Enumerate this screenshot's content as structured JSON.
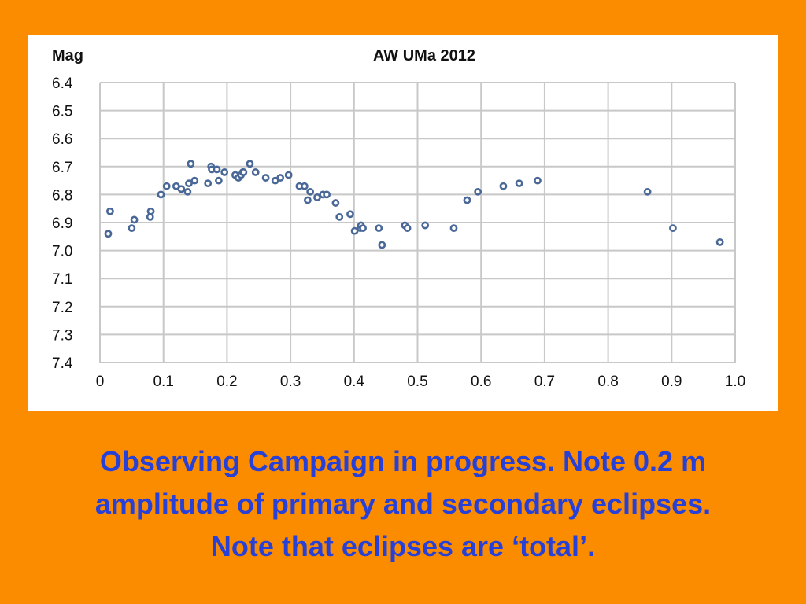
{
  "caption": {
    "line1": "Observing Campaign in progress. Note 0.2 m",
    "line2": "amplitude of primary and secondary eclipses.",
    "line3": "Note that eclipses are ‘total’."
  },
  "colors": {
    "background": "#fb8c00",
    "panel": "#ffffff",
    "marker": "#4a6897",
    "caption": "#2740d8",
    "grid": "#c8c8c8"
  },
  "chart_data": {
    "type": "scatter",
    "title": "AW UMa 2012",
    "ylabel": "Mag",
    "xlabel": "",
    "xlim": [
      0,
      1.0
    ],
    "ylim": [
      6.4,
      7.4
    ],
    "y_inverted": true,
    "grid": true,
    "x_ticks": [
      "0",
      "0.1",
      "0.2",
      "0.3",
      "0.4",
      "0.5",
      "0.6",
      "0.7",
      "0.8",
      "0.9",
      "1.0"
    ],
    "y_ticks": [
      "6.4",
      "6.5",
      "6.6",
      "6.7",
      "6.8",
      "6.9",
      "7.0",
      "7.1",
      "7.2",
      "7.3",
      "7.4"
    ],
    "x_tick_values": [
      0,
      0.1,
      0.2,
      0.3,
      0.4,
      0.5,
      0.6,
      0.7,
      0.8,
      0.9,
      1.0
    ],
    "y_tick_values": [
      6.4,
      6.5,
      6.6,
      6.7,
      6.8,
      6.9,
      7.0,
      7.1,
      7.2,
      7.3,
      7.4
    ],
    "series": [
      {
        "marker": "open-circle",
        "points": [
          [
            0.013,
            6.94
          ],
          [
            0.016,
            6.86
          ],
          [
            0.05,
            6.92
          ],
          [
            0.054,
            6.89
          ],
          [
            0.079,
            6.88
          ],
          [
            0.08,
            6.86
          ],
          [
            0.096,
            6.8
          ],
          [
            0.105,
            6.77
          ],
          [
            0.12,
            6.77
          ],
          [
            0.128,
            6.78
          ],
          [
            0.138,
            6.79
          ],
          [
            0.14,
            6.76
          ],
          [
            0.143,
            6.69
          ],
          [
            0.149,
            6.75
          ],
          [
            0.17,
            6.76
          ],
          [
            0.175,
            6.7
          ],
          [
            0.176,
            6.71
          ],
          [
            0.184,
            6.71
          ],
          [
            0.187,
            6.75
          ],
          [
            0.196,
            6.72
          ],
          [
            0.213,
            6.73
          ],
          [
            0.218,
            6.74
          ],
          [
            0.222,
            6.73
          ],
          [
            0.225,
            6.72
          ],
          [
            0.226,
            6.72
          ],
          [
            0.236,
            6.69
          ],
          [
            0.245,
            6.72
          ],
          [
            0.261,
            6.74
          ],
          [
            0.276,
            6.75
          ],
          [
            0.284,
            6.74
          ],
          [
            0.297,
            6.73
          ],
          [
            0.314,
            6.77
          ],
          [
            0.322,
            6.77
          ],
          [
            0.327,
            6.82
          ],
          [
            0.331,
            6.79
          ],
          [
            0.342,
            6.81
          ],
          [
            0.351,
            6.8
          ],
          [
            0.357,
            6.8
          ],
          [
            0.371,
            6.83
          ],
          [
            0.377,
            6.88
          ],
          [
            0.394,
            6.87
          ],
          [
            0.401,
            6.93
          ],
          [
            0.41,
            6.92
          ],
          [
            0.411,
            6.91
          ],
          [
            0.414,
            6.92
          ],
          [
            0.439,
            6.92
          ],
          [
            0.444,
            6.98
          ],
          [
            0.48,
            6.91
          ],
          [
            0.484,
            6.92
          ],
          [
            0.512,
            6.91
          ],
          [
            0.557,
            6.92
          ],
          [
            0.578,
            6.82
          ],
          [
            0.595,
            6.79
          ],
          [
            0.635,
            6.77
          ],
          [
            0.66,
            6.76
          ],
          [
            0.689,
            6.75
          ],
          [
            0.862,
            6.79
          ],
          [
            0.902,
            6.92
          ],
          [
            0.976,
            6.97
          ]
        ]
      }
    ]
  }
}
